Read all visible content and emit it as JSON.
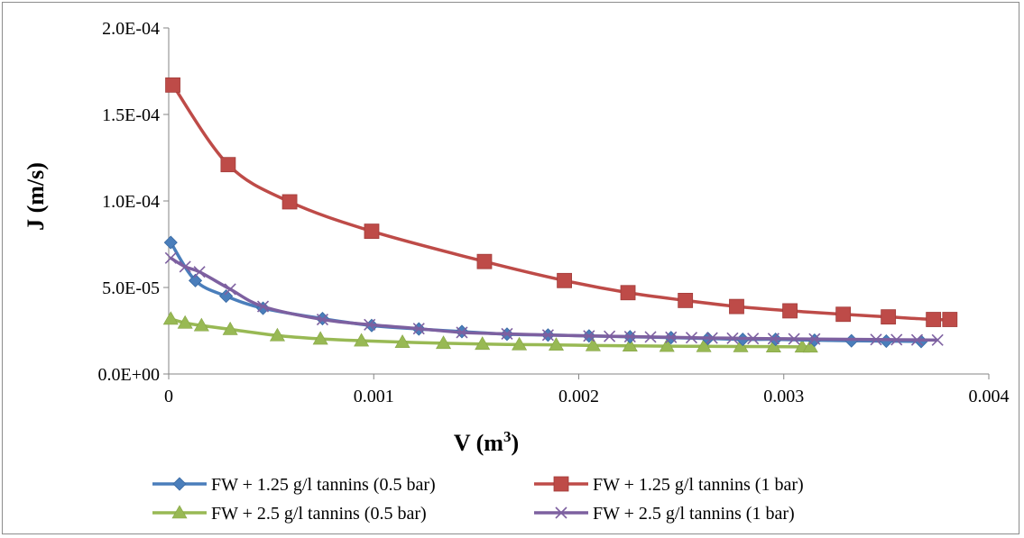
{
  "chart_data": {
    "type": "line",
    "title": "",
    "xlabel": "V (m",
    "xlabel_sup": "3",
    "xlabel_close": ")",
    "ylabel": "J (m/s)",
    "xlim": [
      0,
      0.004
    ],
    "ylim": [
      0,
      0.0002
    ],
    "x_ticks": [
      0,
      0.001,
      0.002,
      0.003,
      0.004
    ],
    "x_tick_labels": [
      "0",
      "0.001",
      "0.002",
      "0.003",
      "0.004"
    ],
    "y_ticks": [
      0,
      5e-05,
      0.0001,
      0.00015,
      0.0002
    ],
    "y_tick_labels": [
      "0.0E+00",
      "5.0E-05",
      "1.0E-04",
      "1.5E-04",
      "2.0E-04"
    ],
    "grid": false,
    "legend_position": "bottom",
    "series": [
      {
        "name": "FW + 1.25 g/l tannins (0.5 bar)",
        "color": "#4a7ebb",
        "marker": "diamond",
        "x": [
          1e-05,
          0.00013,
          0.00028,
          0.00046,
          0.00075,
          0.00099,
          0.00122,
          0.00143,
          0.00165,
          0.00185,
          0.00205,
          0.00225,
          0.00245,
          0.00263,
          0.0028,
          0.00296,
          0.00315,
          0.00333,
          0.0035,
          0.00367
        ],
        "y": [
          7.6e-05,
          5.4e-05,
          4.5e-05,
          3.8e-05,
          3.2e-05,
          2.8e-05,
          2.6e-05,
          2.45e-05,
          2.3e-05,
          2.25e-05,
          2.2e-05,
          2.15e-05,
          2.1e-05,
          2.05e-05,
          2e-05,
          2e-05,
          1.95e-05,
          1.92e-05,
          1.9e-05,
          1.88e-05
        ]
      },
      {
        "name": "FW + 1.25 g/l tannins (1 bar)",
        "color": "#be4b48",
        "marker": "square",
        "x": [
          2e-05,
          0.00029,
          0.00059,
          0.00099,
          0.00154,
          0.00193,
          0.00224,
          0.00252,
          0.00277,
          0.00303,
          0.00329,
          0.00351,
          0.00373,
          0.00381
        ],
        "y": [
          0.000167,
          0.000121,
          9.95e-05,
          8.25e-05,
          6.5e-05,
          5.4e-05,
          4.7e-05,
          4.25e-05,
          3.9e-05,
          3.65e-05,
          3.45e-05,
          3.3e-05,
          3.15e-05,
          3.15e-05
        ]
      },
      {
        "name": "FW + 2.5 g/l tannins (0.5 bar)",
        "color": "#98b954",
        "marker": "triangle",
        "x": [
          1e-05,
          8e-05,
          0.00016,
          0.0003,
          0.00053,
          0.00074,
          0.00094,
          0.00114,
          0.00134,
          0.00153,
          0.00171,
          0.00189,
          0.00207,
          0.00225,
          0.00243,
          0.00261,
          0.00279,
          0.00295,
          0.00309,
          0.00313
        ],
        "y": [
          3.18e-05,
          2.95e-05,
          2.8e-05,
          2.58e-05,
          2.22e-05,
          2.03e-05,
          1.92e-05,
          1.84e-05,
          1.78e-05,
          1.73e-05,
          1.7e-05,
          1.68e-05,
          1.65e-05,
          1.63e-05,
          1.61e-05,
          1.6e-05,
          1.59e-05,
          1.58e-05,
          1.57e-05,
          1.57e-05
        ]
      },
      {
        "name": "FW + 2.5 g/l tannins (1 bar)",
        "color": "#7d60a0",
        "marker": "x",
        "x": [
          1e-05,
          8e-05,
          0.00015,
          0.0003,
          0.00046,
          0.00075,
          0.00098,
          0.00122,
          0.00143,
          0.00165,
          0.00185,
          0.00205,
          0.00215,
          0.00225,
          0.00235,
          0.00245,
          0.00255,
          0.00265,
          0.00275,
          0.00285,
          0.00295,
          0.00305,
          0.00315,
          0.00345,
          0.00355,
          0.00365,
          0.00375
        ],
        "y": [
          6.7e-05,
          6.2e-05,
          5.9e-05,
          4.9e-05,
          3.9e-05,
          3.15e-05,
          2.85e-05,
          2.62e-05,
          2.4e-05,
          2.32e-05,
          2.25e-05,
          2.2e-05,
          2.18e-05,
          2.16e-05,
          2.14e-05,
          2.12e-05,
          2.1e-05,
          2.08e-05,
          2.07e-05,
          2.05e-05,
          2.04e-05,
          2.03e-05,
          2.02e-05,
          1.99e-05,
          1.98e-05,
          1.97e-05,
          1.96e-05
        ]
      }
    ]
  }
}
